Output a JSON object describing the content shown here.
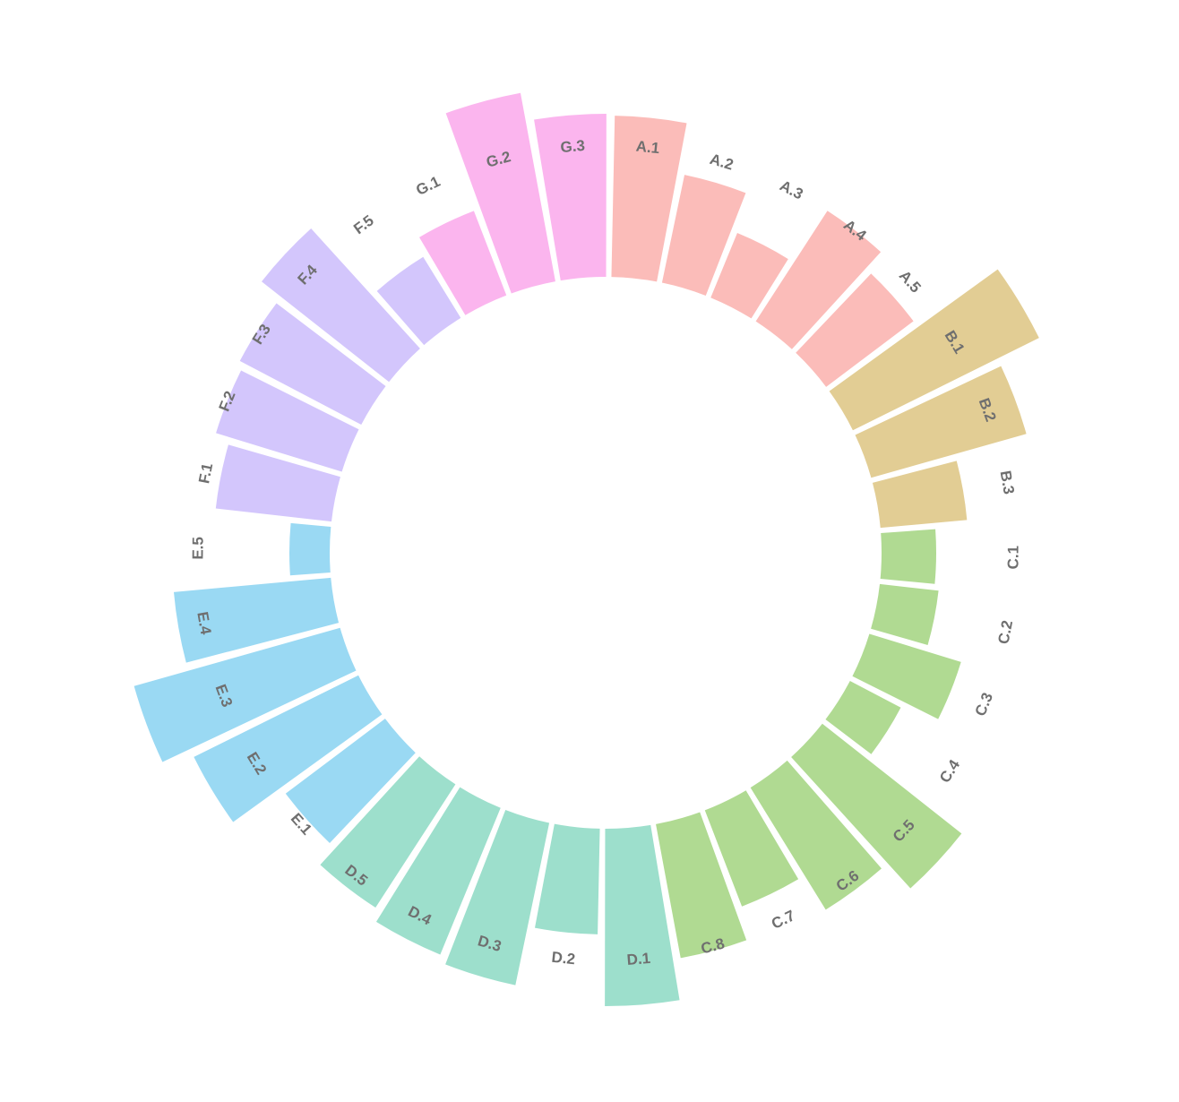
{
  "chart_data": {
    "type": "bar",
    "polar": true,
    "title": "",
    "xlabel": "",
    "ylabel": "",
    "grid": false,
    "legend": "none",
    "groups": [
      {
        "name": "A",
        "color": "#fbbcb9"
      },
      {
        "name": "B",
        "color": "#e2cd94"
      },
      {
        "name": "C",
        "color": "#b0da92"
      },
      {
        "name": "D",
        "color": "#9ddfcc"
      },
      {
        "name": "E",
        "color": "#9ad9f3"
      },
      {
        "name": "F",
        "color": "#d3c6fc"
      },
      {
        "name": "G",
        "color": "#fbb5ee"
      }
    ],
    "categories": [
      "A.1",
      "A.2",
      "A.3",
      "A.4",
      "A.5",
      "B.1",
      "B.2",
      "B.3",
      "C.1",
      "C.2",
      "C.3",
      "C.4",
      "C.5",
      "C.6",
      "C.7",
      "C.8",
      "D.1",
      "D.2",
      "D.3",
      "D.4",
      "D.5",
      "E.1",
      "E.2",
      "E.3",
      "E.4",
      "E.5",
      "F.1",
      "F.2",
      "F.3",
      "F.4",
      "F.5",
      "G.1",
      "G.2",
      "G.3"
    ],
    "values": [
      180,
      123,
      78,
      147,
      122,
      232,
      180,
      97,
      61,
      66,
      107,
      64,
      198,
      160,
      115,
      152,
      198,
      118,
      185,
      177,
      164,
      139,
      205,
      239,
      176,
      45,
      130,
      147,
      153,
      181,
      80,
      101,
      214,
      182
    ]
  }
}
